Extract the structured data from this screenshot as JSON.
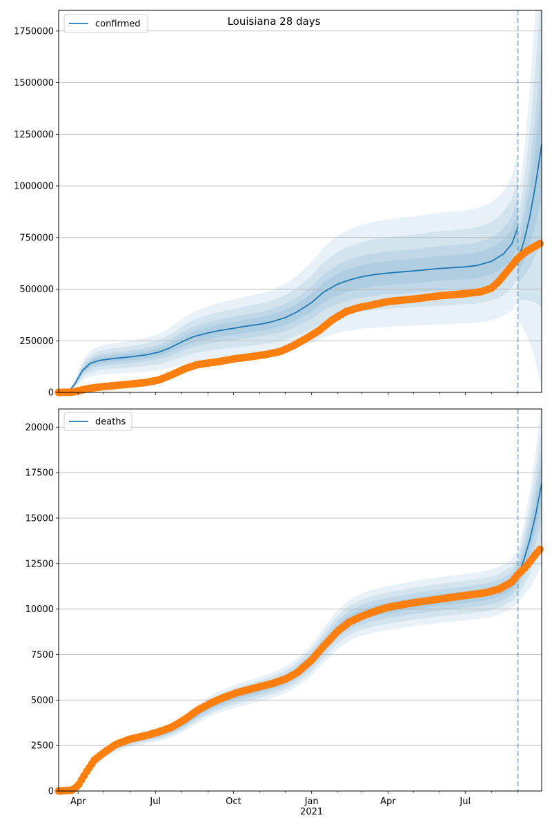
{
  "figure": {
    "title": "Louisiana 28 days"
  },
  "colors": {
    "model": "#1f77b4",
    "observed": "#ff7f0e",
    "grid": "#b0b0b0"
  },
  "chart_data": [
    {
      "type": "line",
      "name": "confirmed",
      "title": "Louisiana 28 days",
      "legend": [
        "confirmed"
      ],
      "legend_position": "top-left",
      "grid": "y",
      "xlim": [
        "2020-03-09",
        "2021-09-29"
      ],
      "ylim": [
        0,
        1850000
      ],
      "yticks": [
        0,
        250000,
        500000,
        750000,
        1000000,
        1250000,
        1500000,
        1750000
      ],
      "ytick_labels": [
        "0",
        "250000",
        "500000",
        "750000",
        "1000000",
        "1250000",
        "1500000",
        "1750000"
      ],
      "forecast_start": "2021-09-01",
      "model_median": [
        [
          "2020-03-09",
          0
        ],
        [
          "2020-03-20",
          0
        ],
        [
          "2020-03-28",
          40000
        ],
        [
          "2020-04-06",
          105000
        ],
        [
          "2020-04-15",
          140000
        ],
        [
          "2020-04-26",
          155000
        ],
        [
          "2020-05-10",
          163000
        ],
        [
          "2020-06-01",
          172000
        ],
        [
          "2020-06-20",
          182000
        ],
        [
          "2020-07-05",
          195000
        ],
        [
          "2020-07-18",
          215000
        ],
        [
          "2020-08-01",
          245000
        ],
        [
          "2020-08-15",
          270000
        ],
        [
          "2020-09-01",
          288000
        ],
        [
          "2020-09-15",
          300000
        ],
        [
          "2020-10-01",
          310000
        ],
        [
          "2020-10-15",
          320000
        ],
        [
          "2020-11-01",
          330000
        ],
        [
          "2020-11-15",
          342000
        ],
        [
          "2020-12-01",
          362000
        ],
        [
          "2020-12-15",
          390000
        ],
        [
          "2021-01-01",
          435000
        ],
        [
          "2021-01-15",
          485000
        ],
        [
          "2021-02-01",
          525000
        ],
        [
          "2021-02-15",
          545000
        ],
        [
          "2021-03-01",
          560000
        ],
        [
          "2021-03-15",
          570000
        ],
        [
          "2021-04-01",
          578000
        ],
        [
          "2021-05-01",
          588000
        ],
        [
          "2021-06-01",
          600000
        ],
        [
          "2021-07-01",
          608000
        ],
        [
          "2021-07-15",
          615000
        ],
        [
          "2021-08-01",
          635000
        ],
        [
          "2021-08-15",
          670000
        ],
        [
          "2021-08-25",
          720000
        ],
        [
          "2021-09-01",
          800000
        ]
      ],
      "forecast_median": [
        [
          "2021-09-01",
          640000
        ],
        [
          "2021-09-08",
          730000
        ],
        [
          "2021-09-15",
          850000
        ],
        [
          "2021-09-22",
          1010000
        ],
        [
          "2021-09-29",
          1200000
        ]
      ],
      "observed": [
        [
          "2020-03-09",
          0
        ],
        [
          "2020-03-25",
          1000
        ],
        [
          "2020-04-01",
          8000
        ],
        [
          "2020-04-15",
          20000
        ],
        [
          "2020-05-01",
          28000
        ],
        [
          "2020-06-01",
          40000
        ],
        [
          "2020-06-20",
          48000
        ],
        [
          "2020-07-05",
          60000
        ],
        [
          "2020-07-20",
          85000
        ],
        [
          "2020-08-05",
          115000
        ],
        [
          "2020-08-20",
          135000
        ],
        [
          "2020-09-15",
          150000
        ],
        [
          "2020-10-01",
          162000
        ],
        [
          "2020-10-20",
          172000
        ],
        [
          "2020-11-10",
          185000
        ],
        [
          "2020-11-25",
          198000
        ],
        [
          "2020-12-10",
          225000
        ],
        [
          "2020-12-25",
          260000
        ],
        [
          "2021-01-10",
          300000
        ],
        [
          "2021-01-25",
          350000
        ],
        [
          "2021-02-10",
          390000
        ],
        [
          "2021-02-25",
          410000
        ],
        [
          "2021-03-15",
          425000
        ],
        [
          "2021-04-01",
          440000
        ],
        [
          "2021-05-01",
          452000
        ],
        [
          "2021-06-01",
          468000
        ],
        [
          "2021-07-01",
          478000
        ],
        [
          "2021-07-20",
          488000
        ],
        [
          "2021-08-01",
          505000
        ],
        [
          "2021-08-10",
          540000
        ],
        [
          "2021-08-20",
          590000
        ],
        [
          "2021-09-01",
          650000
        ],
        [
          "2021-09-10",
          680000
        ],
        [
          "2021-09-20",
          705000
        ],
        [
          "2021-09-29",
          725000
        ]
      ],
      "band_relative_widths": [
        0.45,
        0.3,
        0.18,
        0.1
      ]
    },
    {
      "type": "line",
      "name": "deaths",
      "legend": [
        "deaths"
      ],
      "legend_position": "top-left",
      "grid": "y",
      "xlim": [
        "2020-03-09",
        "2021-09-29"
      ],
      "ylim": [
        0,
        21000
      ],
      "yticks": [
        0,
        2500,
        5000,
        7500,
        10000,
        12500,
        15000,
        17500,
        20000
      ],
      "ytick_labels": [
        "0",
        "2500",
        "5000",
        "7500",
        "10000",
        "12500",
        "15000",
        "17500",
        "20000"
      ],
      "xtick_labels": [
        "Apr",
        "Jul",
        "Oct",
        "Jan\n2021",
        "Apr",
        "Jul"
      ],
      "forecast_start": "2021-09-01",
      "model_median": [
        [
          "2020-03-09",
          0
        ],
        [
          "2020-03-22",
          0
        ],
        [
          "2020-04-01",
          400
        ],
        [
          "2020-04-10",
          1000
        ],
        [
          "2020-04-20",
          1500
        ],
        [
          "2020-05-01",
          2000
        ],
        [
          "2020-05-15",
          2450
        ],
        [
          "2020-06-01",
          2750
        ],
        [
          "2020-06-20",
          2950
        ],
        [
          "2020-07-05",
          3100
        ],
        [
          "2020-07-20",
          3350
        ],
        [
          "2020-08-05",
          3750
        ],
        [
          "2020-08-20",
          4250
        ],
        [
          "2020-09-05",
          4700
        ],
        [
          "2020-09-20",
          5000
        ],
        [
          "2020-10-05",
          5250
        ],
        [
          "2020-10-25",
          5500
        ],
        [
          "2020-11-15",
          5800
        ],
        [
          "2020-12-01",
          6100
        ],
        [
          "2020-12-15",
          6500
        ],
        [
          "2021-01-01",
          7200
        ],
        [
          "2021-01-15",
          8000
        ],
        [
          "2021-02-01",
          8900
        ],
        [
          "2021-02-15",
          9400
        ],
        [
          "2021-03-01",
          9700
        ],
        [
          "2021-03-15",
          9900
        ],
        [
          "2021-04-01",
          10050
        ],
        [
          "2021-05-01",
          10300
        ],
        [
          "2021-06-01",
          10500
        ],
        [
          "2021-07-01",
          10650
        ],
        [
          "2021-07-25",
          10800
        ],
        [
          "2021-08-10",
          11000
        ],
        [
          "2021-08-25",
          11400
        ],
        [
          "2021-09-01",
          11800
        ]
      ],
      "forecast_median": [
        [
          "2021-09-01",
          11800
        ],
        [
          "2021-09-08",
          12700
        ],
        [
          "2021-09-15",
          13800
        ],
        [
          "2021-09-22",
          15200
        ],
        [
          "2021-09-29",
          16900
        ]
      ],
      "observed": [
        [
          "2020-03-09",
          0
        ],
        [
          "2020-03-25",
          50
        ],
        [
          "2020-04-01",
          300
        ],
        [
          "2020-04-10",
          1000
        ],
        [
          "2020-04-20",
          1700
        ],
        [
          "2020-05-01",
          2100
        ],
        [
          "2020-05-15",
          2550
        ],
        [
          "2020-06-01",
          2850
        ],
        [
          "2020-06-20",
          3050
        ],
        [
          "2020-07-05",
          3250
        ],
        [
          "2020-07-20",
          3500
        ],
        [
          "2020-08-05",
          3950
        ],
        [
          "2020-08-20",
          4450
        ],
        [
          "2020-09-05",
          4850
        ],
        [
          "2020-09-20",
          5150
        ],
        [
          "2020-10-05",
          5400
        ],
        [
          "2020-10-25",
          5650
        ],
        [
          "2020-11-15",
          5900
        ],
        [
          "2020-12-01",
          6150
        ],
        [
          "2020-12-15",
          6500
        ],
        [
          "2021-01-01",
          7200
        ],
        [
          "2021-01-15",
          7950
        ],
        [
          "2021-02-01",
          8800
        ],
        [
          "2021-02-15",
          9300
        ],
        [
          "2021-03-01",
          9600
        ],
        [
          "2021-03-15",
          9850
        ],
        [
          "2021-04-01",
          10100
        ],
        [
          "2021-05-01",
          10350
        ],
        [
          "2021-06-01",
          10550
        ],
        [
          "2021-07-01",
          10750
        ],
        [
          "2021-07-25",
          10900
        ],
        [
          "2021-08-10",
          11100
        ],
        [
          "2021-08-25",
          11500
        ],
        [
          "2021-09-01",
          11900
        ],
        [
          "2021-09-10",
          12300
        ],
        [
          "2021-09-20",
          12900
        ],
        [
          "2021-09-29",
          13400
        ]
      ],
      "band_relative_widths": [
        0.12,
        0.085,
        0.055,
        0.03
      ]
    }
  ]
}
